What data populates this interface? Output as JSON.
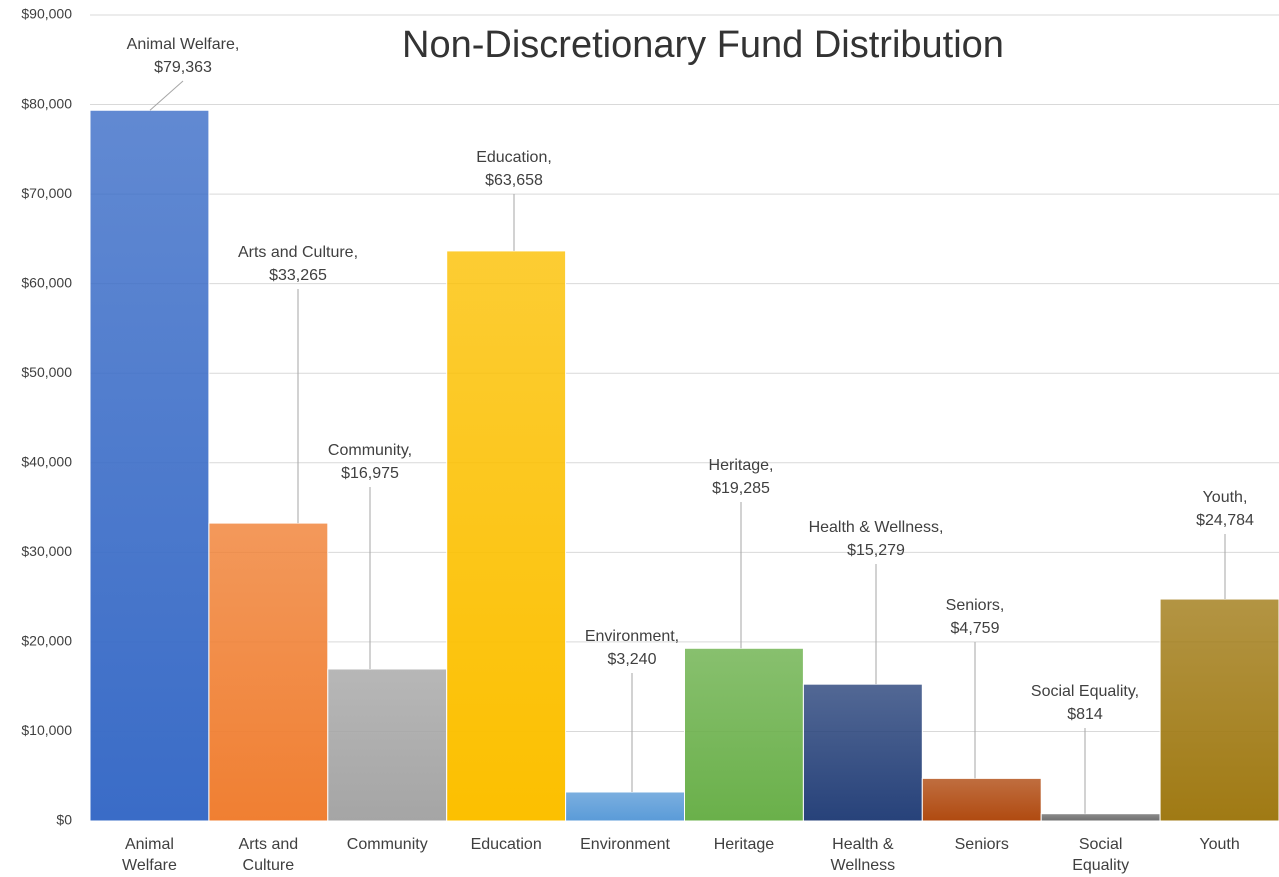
{
  "chart_data": {
    "type": "bar",
    "title": "Non-Discretionary Fund Distribution",
    "categories": [
      "Animal Welfare",
      "Arts and Culture",
      "Community",
      "Education",
      "Environment",
      "Heritage",
      "Health & Wellness",
      "Seniors",
      "Social Equality",
      "Youth"
    ],
    "values": [
      79363,
      33265,
      16975,
      63658,
      3240,
      19285,
      15279,
      4759,
      814,
      24784
    ],
    "value_labels": [
      "Animal Welfare, $79,363",
      "Arts and Culture, $33,265",
      "Community, $16,975",
      "Education, $63,658",
      "Environment, $3,240",
      "Heritage, $19,285",
      "Health & Wellness, $15,279",
      "Seniors, $4,759",
      "Social Equality, $814",
      "Youth, $24,784"
    ],
    "colors": [
      "#3a6cc7",
      "#f07f32",
      "#a5a5a5",
      "#fcc000",
      "#5a9bd8",
      "#6ab04a",
      "#27427a",
      "#b04a10",
      "#6f6f6f",
      "#a07a14"
    ],
    "ylim": [
      0,
      90000
    ],
    "yticks": [
      {
        "value": 0,
        "label": "$0"
      },
      {
        "value": 10000,
        "label": "$10,000"
      },
      {
        "value": 20000,
        "label": "$20,000"
      },
      {
        "value": 30000,
        "label": "$30,000"
      },
      {
        "value": 40000,
        "label": "$40,000"
      },
      {
        "value": 50000,
        "label": "$50,000"
      },
      {
        "value": 60000,
        "label": "$60,000"
      },
      {
        "value": 70000,
        "label": "$70,000"
      },
      {
        "value": 80000,
        "label": "$80,000"
      },
      {
        "value": 90000,
        "label": "$90,000"
      }
    ],
    "grid": true
  }
}
